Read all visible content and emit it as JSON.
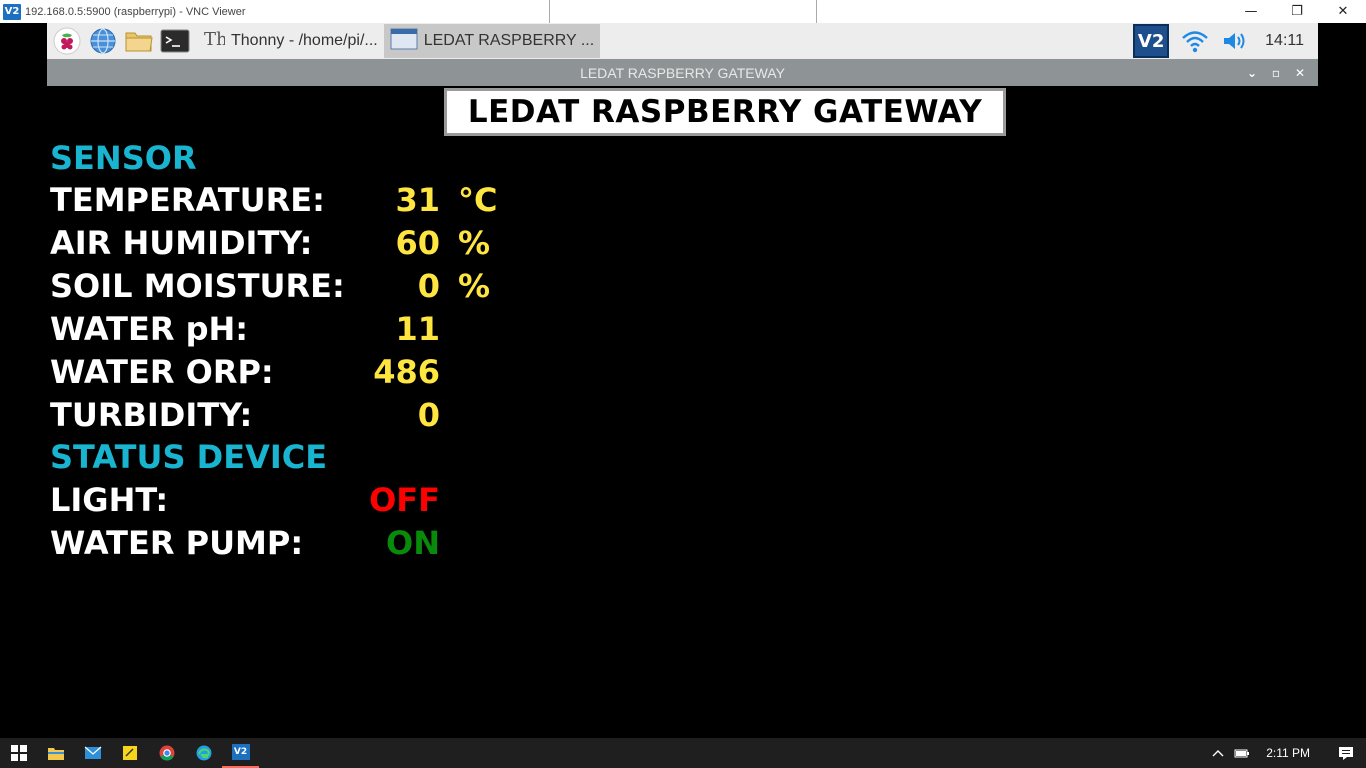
{
  "vnc": {
    "logo_text": "V2",
    "title": "192.168.0.5:5900 (raspberrypi) - VNC Viewer",
    "minimize": "—",
    "restore": "❐",
    "close": "✕"
  },
  "pi_taskbar": {
    "tasks": [
      {
        "label": "Thonny  -  /home/pi/..."
      },
      {
        "label": "LEDAT RASPBERRY ..."
      }
    ],
    "clock": "14:11",
    "vnc_tray_text": "V2"
  },
  "app": {
    "window_title": "LEDAT RASPBERRY GATEWAY",
    "header": "LEDAT RASPBERRY GATEWAY",
    "sensor_section": "SENSOR",
    "sensors": [
      {
        "label": "TEMPERATURE:",
        "value": "31",
        "unit": "°C"
      },
      {
        "label": "AIR HUMIDITY:",
        "value": "60",
        "unit": "%"
      },
      {
        "label": "SOIL MOISTURE:",
        "value": "0",
        "unit": "%"
      },
      {
        "label": "WATER pH:",
        "value": "11",
        "unit": ""
      },
      {
        "label": "WATER ORP:",
        "value": "486",
        "unit": ""
      },
      {
        "label": "TURBIDITY:",
        "value": "0",
        "unit": ""
      }
    ],
    "status_section": "STATUS DEVICE",
    "devices": [
      {
        "label": "LIGHT:",
        "value": "OFF",
        "color": "#ff0000"
      },
      {
        "label": "WATER PUMP:",
        "value": "ON",
        "color": "#0a8a0a"
      }
    ],
    "colors": {
      "section": "#18b4d0",
      "value": "#ffe540",
      "background": "#000000"
    }
  },
  "win_taskbar": {
    "time": "2:11 PM"
  }
}
